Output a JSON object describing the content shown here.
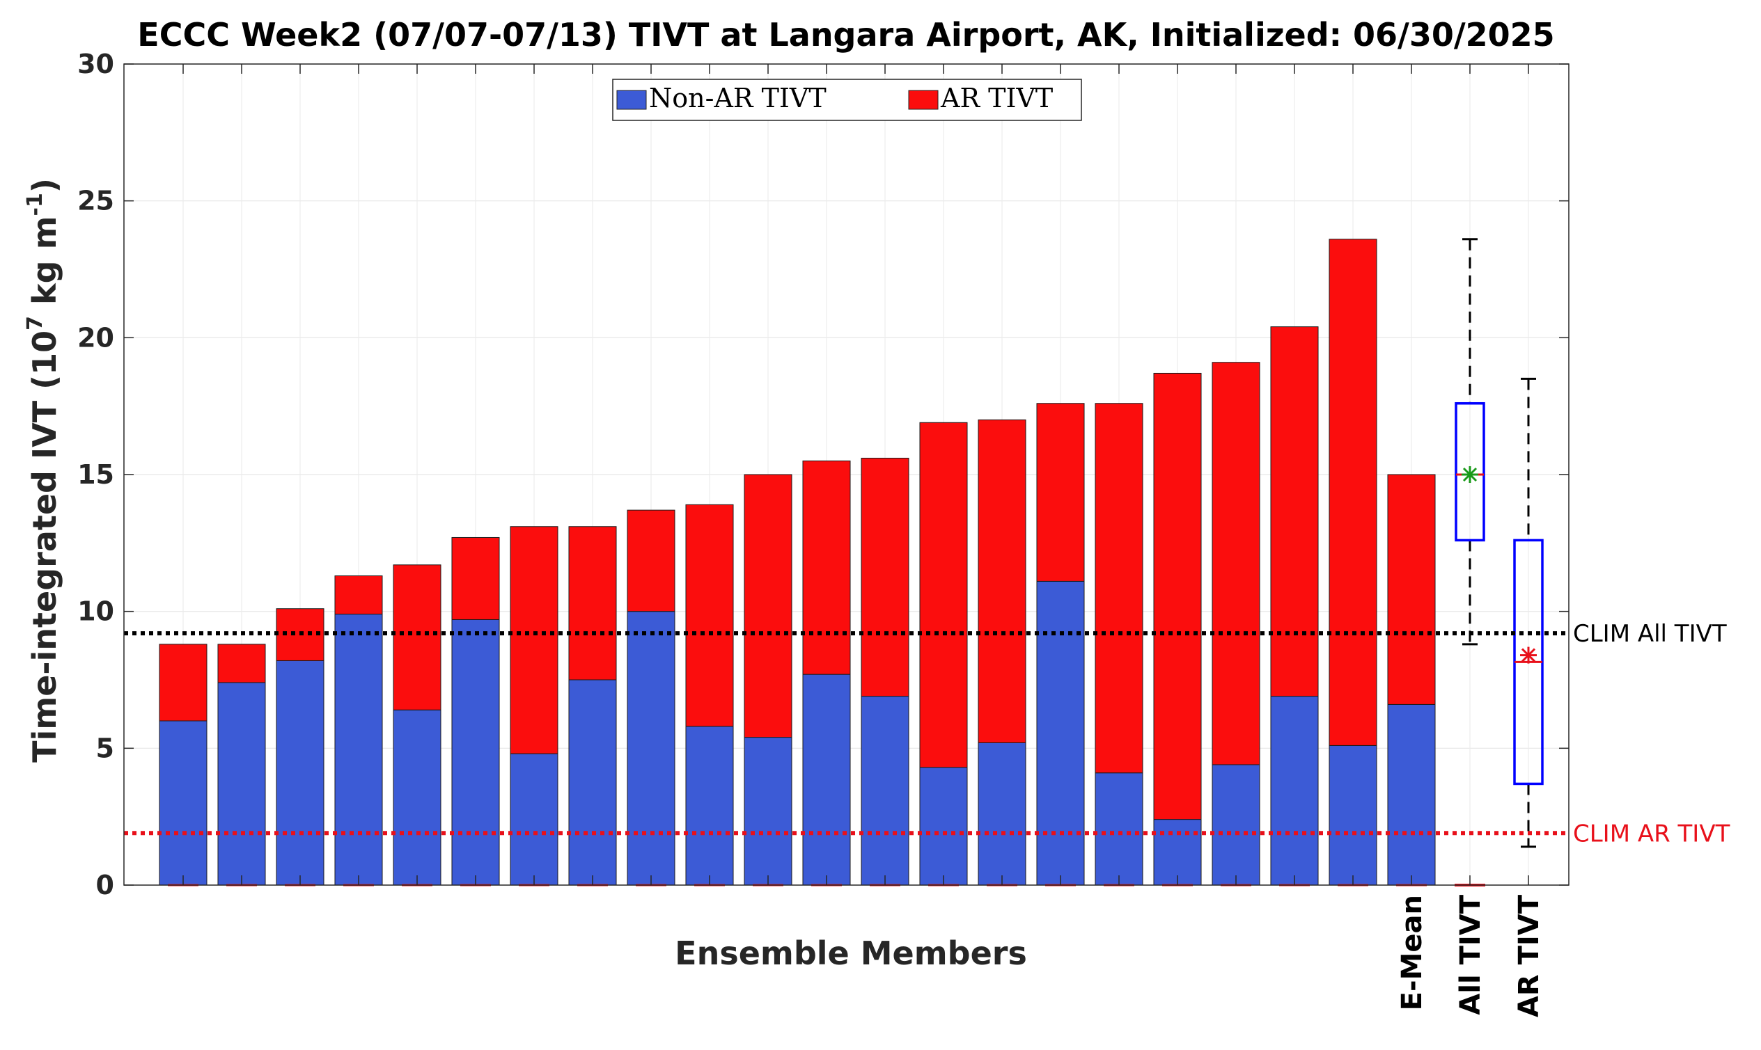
{
  "chart_data": {
    "type": "bar",
    "title": "ECCC Week2 (07/07-07/13) TIVT at Langara Airport, AK, Initialized: 06/30/2025",
    "xlabel": "Ensemble Members",
    "ylabel": "Time-integrated IVT (10",
    "ylabel_exp1": "7",
    "ylabel_mid": " kg m",
    "ylabel_exp2": "-1",
    "ylabel_end": ")",
    "ylim": [
      0,
      30
    ],
    "yticks": [
      "0",
      "5",
      "10",
      "15",
      "20",
      "25",
      "30"
    ],
    "grid": true,
    "legend_placement": "top-center",
    "series": [
      {
        "name": "Non-AR TIVT",
        "color": "#3c5bd6",
        "values": [
          6.0,
          7.4,
          8.2,
          9.9,
          6.4,
          9.7,
          4.8,
          7.5,
          10.0,
          5.8,
          5.4,
          7.7,
          6.9,
          4.3,
          5.2,
          11.1,
          4.1,
          2.4,
          4.4,
          6.9,
          5.1,
          6.6
        ]
      },
      {
        "name": "AR TIVT",
        "color": "#fb0d0d",
        "values": [
          2.8,
          1.4,
          1.9,
          1.4,
          5.3,
          3.0,
          8.3,
          5.6,
          3.7,
          8.1,
          9.6,
          7.8,
          8.7,
          12.6,
          11.8,
          6.5,
          13.5,
          16.3,
          14.7,
          13.5,
          18.5,
          8.4
        ]
      }
    ],
    "category_labels": [
      "E-Mean",
      "All TIVT",
      "AR TIVT"
    ],
    "boxplots": [
      {
        "label": "All TIVT",
        "color": "#0000ff",
        "whisker_low": 8.8,
        "q1": 12.6,
        "median": 15.0,
        "q3": 17.6,
        "whisker_high": 23.6,
        "mean": 15.0,
        "mean_color": "#1a9a1a"
      },
      {
        "label": "AR TIVT",
        "color": "#0000ff",
        "whisker_low": 1.4,
        "q1": 3.7,
        "median": 8.15,
        "q3": 12.6,
        "whisker_high": 18.5,
        "mean": 8.4,
        "mean_color": "#e8101a"
      }
    ],
    "reference_lines": [
      {
        "label": "CLIM All TIVT",
        "value": 9.2,
        "color": "#000000"
      },
      {
        "label": "CLIM AR TIVT",
        "value": 1.9,
        "color": "#e8101a"
      }
    ]
  }
}
